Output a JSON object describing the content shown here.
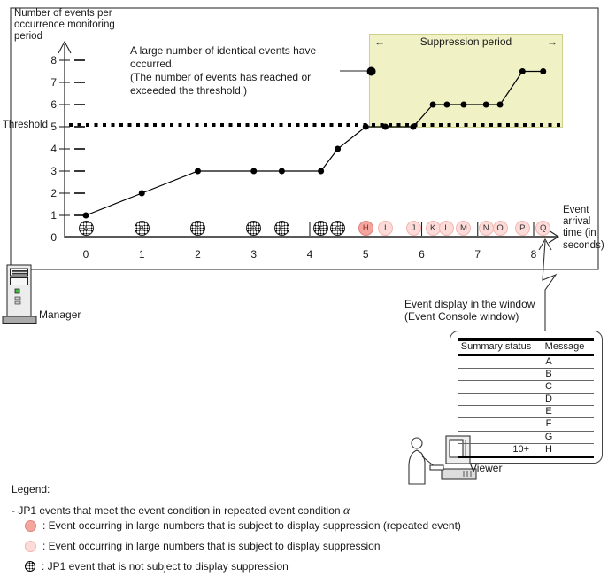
{
  "diagram": {
    "y_axis": {
      "title_lines": [
        "Number of events per",
        "occurrence monitoring",
        "period"
      ],
      "threshold_label": "Threshold"
    },
    "x_axis": {
      "title_lines": [
        "Event",
        "arrival",
        "time (in",
        "seconds)"
      ]
    },
    "annotation": {
      "lines": [
        "A large number of identical events have",
        "occurred.",
        "(The number of events has reached or",
        "exceeded the threshold.)"
      ]
    },
    "suppression": {
      "label": "Suppression period",
      "left_arrow": "←",
      "right_arrow": "→"
    },
    "caption_lines": [
      "Event display in the window",
      "(Event Console window)"
    ],
    "manager_label": "Manager",
    "viewer_label": "Viewer"
  },
  "chart_data": {
    "type": "line",
    "xlabel": "Event arrival time (in seconds)",
    "ylabel": "Number of events per occurrence monitoring period",
    "x_ticks": [
      "0",
      "1",
      "2",
      "3",
      "4",
      "5",
      "6",
      "7",
      "8"
    ],
    "y_ticks": [
      "0",
      "1",
      "2",
      "3",
      "4",
      "5",
      "6",
      "7",
      "8"
    ],
    "xlim": [
      0,
      8.7
    ],
    "ylim": [
      0,
      8.8
    ],
    "grid": false,
    "threshold_value": 5,
    "suppression_span_sec": [
      5.06,
      8.52
    ],
    "points": [
      [
        0,
        1
      ],
      [
        1,
        2
      ],
      [
        2,
        3
      ],
      [
        3,
        3
      ],
      [
        3.5,
        3
      ],
      [
        4.2,
        3
      ],
      [
        4.5,
        4
      ],
      [
        5,
        5
      ],
      [
        5.35,
        5
      ],
      [
        5.85,
        5
      ],
      [
        6.2,
        6
      ],
      [
        6.45,
        6
      ],
      [
        6.75,
        6
      ],
      [
        7.15,
        6
      ],
      [
        7.4,
        6
      ],
      [
        7.8,
        7.5
      ],
      [
        8.17,
        7.5
      ]
    ],
    "annotation_point": [
      5.1,
      7.5
    ]
  },
  "events": [
    {
      "letter": "A",
      "sec": 0,
      "type": "normal"
    },
    {
      "letter": "B",
      "sec": 1,
      "type": "normal"
    },
    {
      "letter": "C",
      "sec": 2,
      "type": "normal"
    },
    {
      "letter": "D",
      "sec": 3,
      "type": "normal"
    },
    {
      "letter": "E",
      "sec": 3.5,
      "type": "normal"
    },
    {
      "letter": "F",
      "sec": 4.2,
      "type": "normal"
    },
    {
      "letter": "G",
      "sec": 4.5,
      "type": "normal"
    },
    {
      "letter": "H",
      "sec": 5.0,
      "type": "repeated"
    },
    {
      "letter": "I",
      "sec": 5.35,
      "type": "suppressed"
    },
    {
      "letter": "J",
      "sec": 5.85,
      "type": "suppressed"
    },
    {
      "letter": "K",
      "sec": 6.2,
      "type": "suppressed"
    },
    {
      "letter": "L",
      "sec": 6.45,
      "type": "suppressed"
    },
    {
      "letter": "M",
      "sec": 6.75,
      "type": "suppressed"
    },
    {
      "letter": "N",
      "sec": 7.15,
      "type": "suppressed"
    },
    {
      "letter": "O",
      "sec": 7.4,
      "type": "suppressed"
    },
    {
      "letter": "P",
      "sec": 7.8,
      "type": "suppressed"
    },
    {
      "letter": "Q",
      "sec": 8.17,
      "type": "suppressed"
    }
  ],
  "table": {
    "headers": [
      "Summary status",
      "Message"
    ],
    "rows": [
      {
        "summary": "",
        "message": "A"
      },
      {
        "summary": "",
        "message": "B"
      },
      {
        "summary": "",
        "message": "C"
      },
      {
        "summary": "",
        "message": "D"
      },
      {
        "summary": "",
        "message": "E"
      },
      {
        "summary": "",
        "message": "F"
      },
      {
        "summary": "",
        "message": "G"
      },
      {
        "summary": "10+",
        "message": "H"
      }
    ]
  },
  "legend": {
    "title": "Legend:",
    "group_label": "- JP1 events that meet the event condition in repeated event condition ",
    "group_label_symbol": "α",
    "items": [
      {
        "type": "repeated",
        "text": ": Event occurring in large numbers that is subject to display suppression (repeated event)"
      },
      {
        "type": "suppressed",
        "text": ": Event occurring in large numbers that is subject to display suppression"
      },
      {
        "type": "normal",
        "text": ": JP1 event that is not subject to display suppression"
      }
    ]
  },
  "colors": {
    "suppression_fill": "#f0f1c5",
    "suppression_border": "#cdd08b",
    "repeated_fill": "#f4a59e",
    "repeated_border": "#df837b",
    "repeated_letter": "#8e2b24",
    "suppressed_fill": "#fcdbd8",
    "suppressed_border": "#f2b5b0",
    "line_color": "#000000"
  }
}
